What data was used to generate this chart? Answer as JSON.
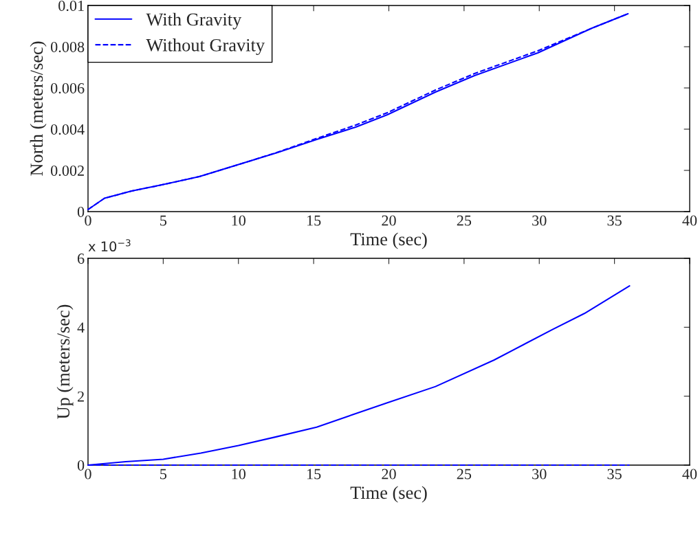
{
  "chart_data": [
    {
      "type": "line",
      "xlabel": "Time (sec)",
      "ylabel": "North (meters/sec)",
      "xlim": [
        0,
        40
      ],
      "xticks": [
        0,
        5,
        10,
        15,
        20,
        25,
        30,
        35,
        40
      ],
      "ylim": [
        0,
        0.01
      ],
      "yticks": [
        0,
        0.002,
        0.004,
        0.006,
        0.008,
        0.01
      ],
      "grid": false,
      "legend": "top left",
      "series": [
        {
          "name": "With Gravity",
          "color": "#0000ff",
          "line_style": "solid",
          "x": [
            0,
            1.1,
            2.9,
            4.8,
            7.4,
            10,
            12.6,
            15.2,
            17.8,
            19.9,
            23.1,
            25.7,
            29.9,
            33.5,
            35.9
          ],
          "values": [
            0.0001,
            0.00065,
            0.001,
            0.00128,
            0.0017,
            0.00228,
            0.00287,
            0.0035,
            0.0041,
            0.0047,
            0.0058,
            0.0066,
            0.0077,
            0.0089,
            0.0096
          ]
        },
        {
          "name": "Without Gravity",
          "color": "#0000ff",
          "line_style": "dashed",
          "x": [
            0,
            1.1,
            2.9,
            4.8,
            7.4,
            10,
            12.6,
            15.2,
            17.8,
            19.9,
            23.1,
            25.7,
            29.9,
            33.5,
            35.9
          ],
          "values": [
            0.0001,
            0.00065,
            0.001,
            0.00128,
            0.0017,
            0.00228,
            0.00288,
            0.00355,
            0.0042,
            0.0048,
            0.0059,
            0.0067,
            0.0078,
            0.0089,
            0.0096
          ]
        }
      ]
    },
    {
      "type": "line",
      "xlabel": "Time (sec)",
      "ylabel": "Up (meters/sec)",
      "xlim": [
        0,
        40
      ],
      "xticks": [
        0,
        5,
        10,
        15,
        20,
        25,
        30,
        35,
        40
      ],
      "ylim": [
        0,
        6
      ],
      "yticks": [
        0,
        2,
        4,
        6
      ],
      "grid": false,
      "annotations": [
        "x 10$^{−3}$"
      ],
      "series": [
        {
          "color": "#0000ff",
          "line_style": "solid",
          "x": [
            0,
            2.5,
            5,
            7.5,
            10,
            12.5,
            15.2,
            17.5,
            19.9,
            23.1,
            27,
            30.9,
            33,
            36
          ],
          "values": [
            0,
            0.1,
            0.17,
            0.35,
            0.57,
            0.82,
            1.1,
            1.45,
            1.81,
            2.28,
            3.05,
            3.94,
            4.4,
            5.2
          ]
        },
        {
          "color": "#0000ff",
          "line_style": "dashed",
          "x": [
            0,
            36
          ],
          "values": [
            0,
            0
          ]
        }
      ]
    }
  ]
}
